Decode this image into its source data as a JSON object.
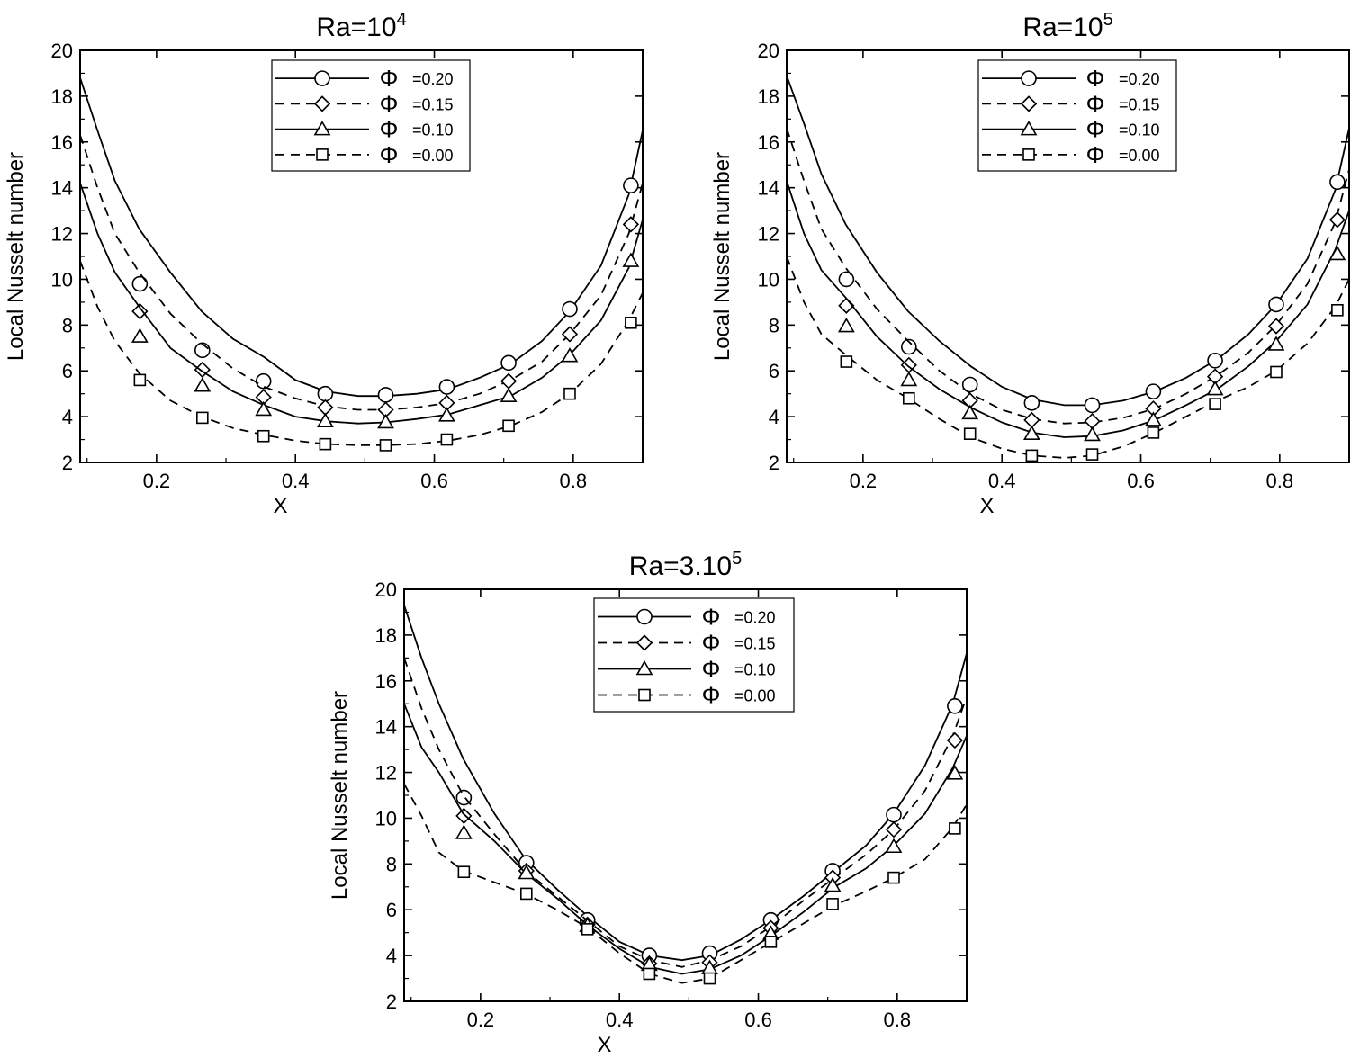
{
  "chart_data": [
    {
      "type": "line",
      "title": "Ra=10^4",
      "title_base": "Ra=10",
      "title_sup": "4",
      "xlabel": "X",
      "ylabel": "Local Nusselt number",
      "xlim": [
        0.09,
        0.9
      ],
      "ylim": [
        2,
        20
      ],
      "xticks": [
        "0.2",
        "0.4",
        "0.6",
        "0.8"
      ],
      "xtick_values": [
        0.2,
        0.4,
        0.6,
        0.8
      ],
      "yticks": [
        "2",
        "4",
        "6",
        "8",
        "10",
        "12",
        "14",
        "16",
        "18",
        "20"
      ],
      "ytick_values": [
        2,
        4,
        6,
        8,
        10,
        12,
        14,
        16,
        18,
        20
      ],
      "legend_position": "top-center",
      "legend_symbol": "Φ",
      "grid": false,
      "series": [
        {
          "name": "=0.20",
          "marker": "circle",
          "dash": "solid",
          "x": [
            0.09,
            0.115,
            0.14,
            0.175,
            0.22,
            0.265,
            0.31,
            0.355,
            0.4,
            0.444,
            0.49,
            0.53,
            0.575,
            0.62,
            0.665,
            0.71,
            0.755,
            0.795,
            0.84,
            0.88,
            0.9
          ],
          "y": [
            18.8,
            16.5,
            14.3,
            12.2,
            10.3,
            8.6,
            7.4,
            6.6,
            5.6,
            5.1,
            4.9,
            4.9,
            5.0,
            5.2,
            5.7,
            6.3,
            7.3,
            8.6,
            10.6,
            13.7,
            16.5
          ],
          "marker_x": [
            0.176,
            0.266,
            0.354,
            0.443,
            0.53,
            0.618,
            0.707,
            0.795,
            0.883
          ],
          "marker_y": [
            9.8,
            6.9,
            5.55,
            5.0,
            4.95,
            5.3,
            6.35,
            8.7,
            14.1
          ]
        },
        {
          "name": "=0.15",
          "marker": "diamond",
          "dash": "dashed",
          "x": [
            0.09,
            0.115,
            0.14,
            0.175,
            0.22,
            0.265,
            0.31,
            0.355,
            0.4,
            0.444,
            0.49,
            0.53,
            0.575,
            0.62,
            0.665,
            0.71,
            0.755,
            0.795,
            0.84,
            0.88,
            0.9
          ],
          "y": [
            16.3,
            14.0,
            12.0,
            10.3,
            8.5,
            7.2,
            6.1,
            5.3,
            4.8,
            4.45,
            4.3,
            4.3,
            4.4,
            4.6,
            5.0,
            5.6,
            6.4,
            7.6,
            9.3,
            12.0,
            14.2
          ],
          "marker_x": [
            0.176,
            0.266,
            0.354,
            0.443,
            0.53,
            0.618,
            0.707,
            0.795,
            0.883
          ],
          "marker_y": [
            8.6,
            6.05,
            4.85,
            4.4,
            4.3,
            4.6,
            5.55,
            7.6,
            12.4
          ]
        },
        {
          "name": "=0.10",
          "marker": "triangle",
          "dash": "solid",
          "x": [
            0.09,
            0.115,
            0.14,
            0.175,
            0.22,
            0.265,
            0.31,
            0.355,
            0.4,
            0.444,
            0.49,
            0.53,
            0.575,
            0.62,
            0.665,
            0.71,
            0.755,
            0.795,
            0.84,
            0.88,
            0.9
          ],
          "y": [
            14.2,
            12.0,
            10.3,
            8.8,
            7.0,
            6.0,
            5.1,
            4.5,
            4.0,
            3.8,
            3.7,
            3.75,
            3.9,
            4.1,
            4.5,
            4.9,
            5.7,
            6.7,
            8.2,
            10.5,
            12.6
          ],
          "marker_x": [
            0.176,
            0.266,
            0.354,
            0.443,
            0.53,
            0.618,
            0.707,
            0.795,
            0.883
          ],
          "marker_y": [
            7.5,
            5.35,
            4.3,
            3.8,
            3.75,
            4.05,
            4.9,
            6.65,
            10.8
          ]
        },
        {
          "name": "=0.00",
          "marker": "square",
          "dash": "dashed",
          "x": [
            0.09,
            0.115,
            0.14,
            0.175,
            0.22,
            0.265,
            0.31,
            0.355,
            0.4,
            0.444,
            0.49,
            0.53,
            0.575,
            0.62,
            0.665,
            0.71,
            0.755,
            0.795,
            0.84,
            0.88,
            0.9
          ],
          "y": [
            10.8,
            8.8,
            7.3,
            5.9,
            4.7,
            4.0,
            3.5,
            3.2,
            2.95,
            2.8,
            2.75,
            2.75,
            2.8,
            2.95,
            3.2,
            3.6,
            4.2,
            5.0,
            6.3,
            8.2,
            9.4
          ],
          "marker_x": [
            0.176,
            0.266,
            0.354,
            0.443,
            0.53,
            0.618,
            0.707,
            0.795,
            0.883
          ],
          "marker_y": [
            5.6,
            3.95,
            3.15,
            2.8,
            2.75,
            3.0,
            3.6,
            5.0,
            8.1
          ]
        }
      ]
    },
    {
      "type": "line",
      "title": "Ra=10^5",
      "title_base": "Ra=10",
      "title_sup": "5",
      "xlabel": "X",
      "ylabel": "Local Nusselt number",
      "xlim": [
        0.09,
        0.9
      ],
      "ylim": [
        2,
        20
      ],
      "xticks": [
        "0.2",
        "0.4",
        "0.6",
        "0.8"
      ],
      "xtick_values": [
        0.2,
        0.4,
        0.6,
        0.8
      ],
      "yticks": [
        "2",
        "4",
        "6",
        "8",
        "10",
        "12",
        "14",
        "16",
        "18",
        "20"
      ],
      "ytick_values": [
        2,
        4,
        6,
        8,
        10,
        12,
        14,
        16,
        18,
        20
      ],
      "legend_position": "top-center",
      "legend_symbol": "Φ",
      "grid": false,
      "series": [
        {
          "name": "=0.20",
          "marker": "circle",
          "dash": "solid",
          "x": [
            0.09,
            0.115,
            0.14,
            0.175,
            0.22,
            0.265,
            0.31,
            0.355,
            0.4,
            0.444,
            0.49,
            0.53,
            0.575,
            0.62,
            0.665,
            0.71,
            0.755,
            0.795,
            0.84,
            0.88,
            0.9
          ],
          "y": [
            18.9,
            16.8,
            14.6,
            12.4,
            10.3,
            8.6,
            7.3,
            6.2,
            5.3,
            4.75,
            4.5,
            4.5,
            4.7,
            5.1,
            5.7,
            6.5,
            7.6,
            8.9,
            10.9,
            13.9,
            16.6
          ],
          "marker_x": [
            0.176,
            0.266,
            0.354,
            0.443,
            0.53,
            0.618,
            0.707,
            0.795,
            0.883
          ],
          "marker_y": [
            10.0,
            7.05,
            5.4,
            4.6,
            4.5,
            5.1,
            6.45,
            8.9,
            14.25
          ]
        },
        {
          "name": "=0.15",
          "marker": "diamond",
          "dash": "dashed",
          "x": [
            0.09,
            0.115,
            0.14,
            0.175,
            0.22,
            0.265,
            0.31,
            0.355,
            0.4,
            0.444,
            0.49,
            0.53,
            0.575,
            0.62,
            0.665,
            0.71,
            0.755,
            0.795,
            0.84,
            0.88,
            0.9
          ],
          "y": [
            16.6,
            14.3,
            12.2,
            10.5,
            8.7,
            7.3,
            6.0,
            5.0,
            4.3,
            3.9,
            3.7,
            3.75,
            3.95,
            4.35,
            5.0,
            5.8,
            6.8,
            8.0,
            9.8,
            12.5,
            14.8
          ],
          "marker_x": [
            0.176,
            0.266,
            0.354,
            0.443,
            0.53,
            0.618,
            0.707,
            0.795,
            0.883
          ],
          "marker_y": [
            8.85,
            6.25,
            4.7,
            3.85,
            3.8,
            4.35,
            5.75,
            7.95,
            12.6
          ]
        },
        {
          "name": "=0.10",
          "marker": "triangle",
          "dash": "solid",
          "x": [
            0.09,
            0.115,
            0.14,
            0.175,
            0.22,
            0.265,
            0.31,
            0.355,
            0.4,
            0.444,
            0.49,
            0.53,
            0.575,
            0.62,
            0.665,
            0.71,
            0.755,
            0.795,
            0.84,
            0.88,
            0.9
          ],
          "y": [
            14.3,
            12.0,
            10.4,
            9.2,
            7.5,
            6.2,
            5.2,
            4.4,
            3.75,
            3.3,
            3.1,
            3.15,
            3.4,
            3.85,
            4.5,
            5.2,
            6.2,
            7.3,
            8.9,
            11.3,
            13.0
          ],
          "marker_x": [
            0.176,
            0.266,
            0.354,
            0.443,
            0.53,
            0.618,
            0.707,
            0.795,
            0.883
          ],
          "marker_y": [
            7.95,
            5.6,
            4.15,
            3.25,
            3.2,
            3.85,
            5.2,
            7.15,
            11.1
          ]
        },
        {
          "name": "=0.00",
          "marker": "square",
          "dash": "dashed",
          "x": [
            0.09,
            0.115,
            0.14,
            0.175,
            0.22,
            0.265,
            0.31,
            0.355,
            0.4,
            0.444,
            0.49,
            0.53,
            0.575,
            0.62,
            0.665,
            0.71,
            0.755,
            0.795,
            0.84,
            0.88,
            0.9
          ],
          "y": [
            11.0,
            9.0,
            7.6,
            6.7,
            5.6,
            4.8,
            3.9,
            3.1,
            2.6,
            2.3,
            2.2,
            2.3,
            2.7,
            3.3,
            4.0,
            4.7,
            5.3,
            6.0,
            7.2,
            8.8,
            10.0
          ],
          "marker_x": [
            0.176,
            0.266,
            0.354,
            0.443,
            0.53,
            0.618,
            0.707,
            0.795,
            0.883
          ],
          "marker_y": [
            6.4,
            4.8,
            3.25,
            2.3,
            2.35,
            3.3,
            4.55,
            5.95,
            8.65
          ]
        }
      ]
    },
    {
      "type": "line",
      "title": "Ra=3.10^5",
      "title_base": "Ra=3.10",
      "title_sup": "5",
      "xlabel": "X",
      "ylabel": "Local Nusselt number",
      "xlim": [
        0.09,
        0.9
      ],
      "ylim": [
        2,
        20
      ],
      "xticks": [
        "0.2",
        "0.4",
        "0.6",
        "0.8"
      ],
      "xtick_values": [
        0.2,
        0.4,
        0.6,
        0.8
      ],
      "yticks": [
        "2",
        "4",
        "6",
        "8",
        "10",
        "12",
        "14",
        "16",
        "18",
        "20"
      ],
      "ytick_values": [
        2,
        4,
        6,
        8,
        10,
        12,
        14,
        16,
        18,
        20
      ],
      "legend_position": "top-center",
      "legend_symbol": "Φ",
      "grid": false,
      "series": [
        {
          "name": "=0.20",
          "marker": "circle",
          "dash": "solid",
          "x": [
            0.09,
            0.115,
            0.14,
            0.175,
            0.22,
            0.265,
            0.31,
            0.355,
            0.4,
            0.444,
            0.49,
            0.53,
            0.575,
            0.62,
            0.665,
            0.71,
            0.755,
            0.795,
            0.84,
            0.88,
            0.9
          ],
          "y": [
            19.3,
            17.0,
            15.0,
            12.6,
            10.2,
            8.2,
            6.9,
            5.7,
            4.6,
            4.0,
            3.8,
            4.0,
            4.7,
            5.6,
            6.6,
            7.7,
            8.8,
            10.2,
            12.3,
            15.0,
            17.2
          ],
          "marker_x": [
            0.176,
            0.266,
            0.354,
            0.443,
            0.53,
            0.618,
            0.707,
            0.795,
            0.883
          ],
          "marker_y": [
            10.9,
            8.05,
            5.55,
            4.0,
            4.1,
            5.55,
            7.7,
            10.15,
            14.9
          ]
        },
        {
          "name": "=0.15",
          "marker": "diamond",
          "dash": "dashed",
          "x": [
            0.09,
            0.115,
            0.14,
            0.175,
            0.22,
            0.265,
            0.31,
            0.355,
            0.4,
            0.444,
            0.49,
            0.53,
            0.575,
            0.62,
            0.665,
            0.71,
            0.755,
            0.795,
            0.84,
            0.88,
            0.9
          ],
          "y": [
            17.0,
            14.8,
            13.0,
            11.0,
            9.3,
            7.7,
            6.6,
            5.5,
            4.4,
            3.8,
            3.5,
            3.8,
            4.4,
            5.3,
            6.4,
            7.4,
            8.4,
            9.5,
            11.2,
            13.6,
            15.3
          ],
          "marker_x": [
            0.176,
            0.266,
            0.354,
            0.443,
            0.53,
            0.618,
            0.707,
            0.795,
            0.883
          ],
          "marker_y": [
            10.1,
            7.7,
            5.35,
            3.65,
            3.7,
            5.2,
            7.4,
            9.5,
            13.4
          ]
        },
        {
          "name": "=0.10",
          "marker": "triangle",
          "dash": "solid",
          "x": [
            0.09,
            0.115,
            0.14,
            0.175,
            0.22,
            0.265,
            0.31,
            0.355,
            0.4,
            0.444,
            0.49,
            0.53,
            0.575,
            0.62,
            0.665,
            0.71,
            0.755,
            0.795,
            0.84,
            0.88,
            0.9
          ],
          "y": [
            15.0,
            13.1,
            12.0,
            10.2,
            9.0,
            7.6,
            6.5,
            5.3,
            4.3,
            3.5,
            3.2,
            3.4,
            4.0,
            4.9,
            5.9,
            7.0,
            7.8,
            8.8,
            10.2,
            12.2,
            13.6
          ],
          "marker_x": [
            0.176,
            0.266,
            0.354,
            0.443,
            0.53,
            0.618,
            0.707,
            0.795,
            0.883
          ],
          "marker_y": [
            9.35,
            7.6,
            5.3,
            3.6,
            3.45,
            4.95,
            7.05,
            8.75,
            11.95
          ]
        },
        {
          "name": "=0.00",
          "marker": "square",
          "dash": "dashed",
          "x": [
            0.09,
            0.115,
            0.14,
            0.175,
            0.22,
            0.265,
            0.31,
            0.355,
            0.4,
            0.444,
            0.49,
            0.53,
            0.575,
            0.62,
            0.665,
            0.71,
            0.755,
            0.795,
            0.84,
            0.88,
            0.9
          ],
          "y": [
            11.5,
            10.1,
            8.5,
            7.7,
            7.2,
            6.7,
            6.0,
            5.2,
            4.1,
            3.2,
            2.8,
            3.0,
            3.8,
            4.6,
            5.4,
            6.2,
            6.8,
            7.4,
            8.2,
            9.6,
            10.6
          ],
          "marker_x": [
            0.176,
            0.266,
            0.354,
            0.443,
            0.53,
            0.618,
            0.707,
            0.795,
            0.883
          ],
          "marker_y": [
            7.65,
            6.7,
            5.15,
            3.2,
            3.0,
            4.6,
            6.25,
            7.4,
            9.55
          ]
        }
      ]
    }
  ]
}
